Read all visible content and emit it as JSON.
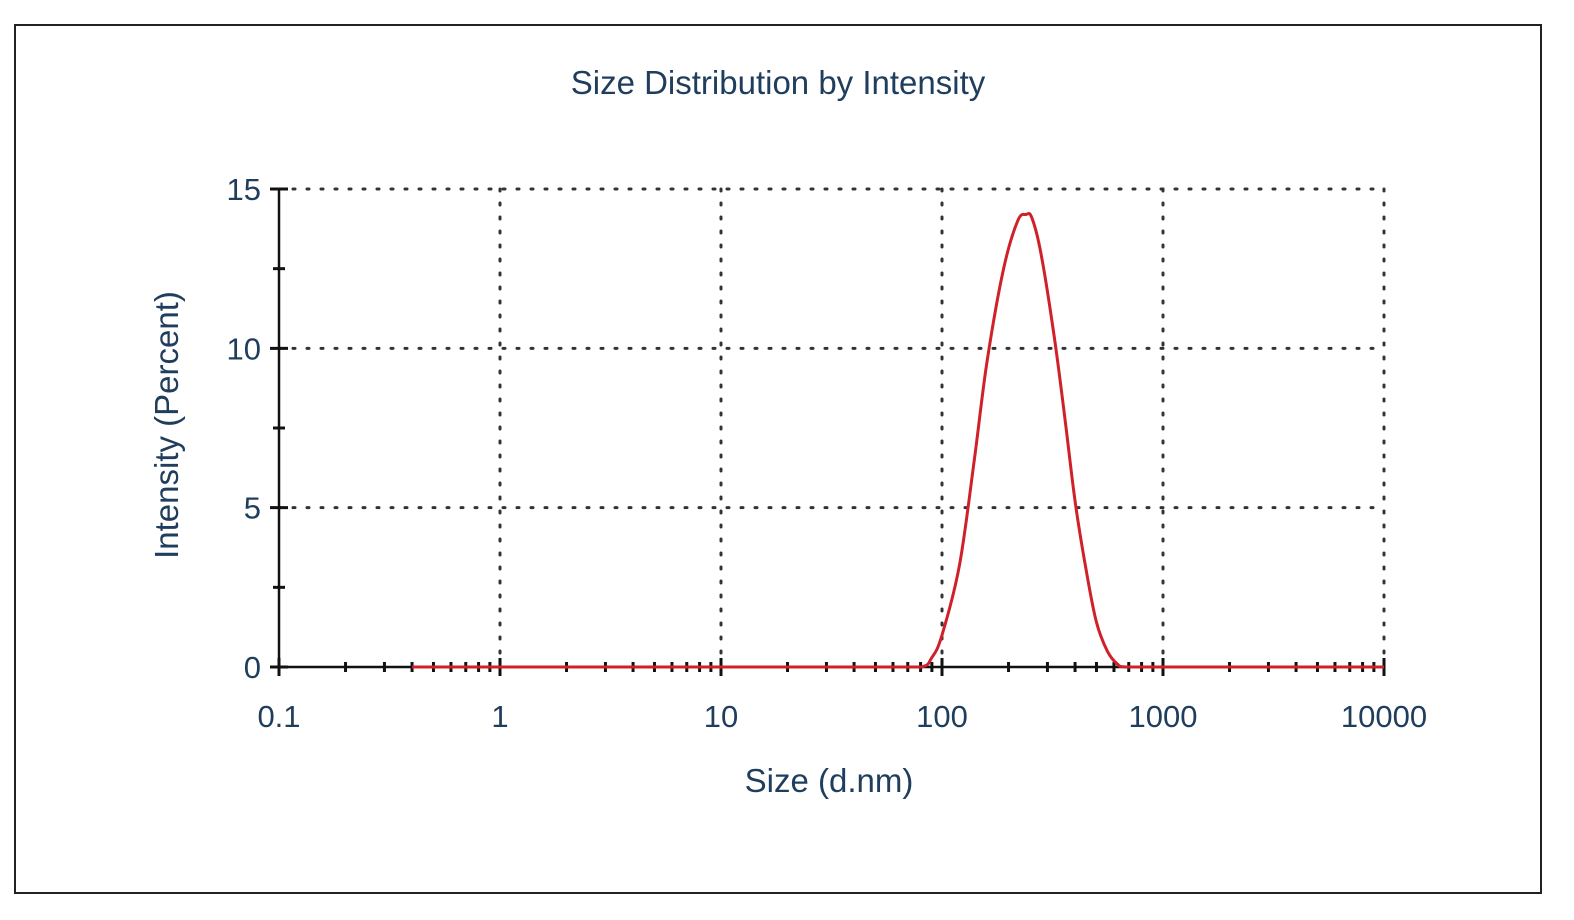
{
  "chart_data": {
    "type": "line",
    "title": "Size Distribution by Intensity",
    "xlabel": "Size (d.nm)",
    "ylabel": "Intensity (Percent)",
    "x_scale": "log",
    "xlim": [
      0.1,
      10000
    ],
    "ylim": [
      0,
      15
    ],
    "xticks": [
      "0.1",
      "1",
      "10",
      "100",
      "1000",
      "10000"
    ],
    "yticks": [
      "0",
      "5",
      "10",
      "15"
    ],
    "grid": true,
    "series": [
      {
        "color": "#d0202a",
        "x": [
          0.4,
          1,
          10,
          50,
          80,
          90,
          100,
          120,
          140,
          160,
          190,
          220,
          240,
          255,
          280,
          320,
          360,
          400,
          450,
          500,
          560,
          620,
          680,
          1000,
          10000
        ],
        "y": [
          0,
          0,
          0,
          0,
          0,
          0.3,
          1.0,
          3.2,
          6.5,
          9.6,
          12.5,
          14.0,
          14.2,
          14.1,
          13.0,
          10.5,
          7.8,
          5.2,
          3.0,
          1.4,
          0.5,
          0.1,
          0,
          0,
          0
        ]
      }
    ]
  }
}
